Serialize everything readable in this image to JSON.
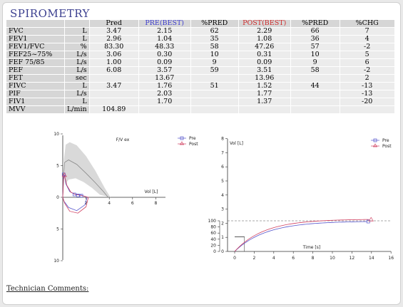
{
  "title": "SPIROMETRY",
  "table": {
    "headers": [
      "",
      "",
      "Pred",
      "PRE(BEST)",
      "%PRED",
      "POST(BEST)",
      "%PRED",
      "%CHG"
    ],
    "rows": [
      [
        "FVC",
        "L",
        "3.47",
        "2.15",
        "62",
        "2.29",
        "66",
        "7"
      ],
      [
        "FEV1",
        "L",
        "2.96",
        "1.04",
        "35",
        "1.08",
        "36",
        "4"
      ],
      [
        "FEV1/FVC",
        "%",
        "83.30",
        "48.33",
        "58",
        "47.26",
        "57",
        "-2"
      ],
      [
        "FEF25~75%",
        "L/s",
        "3.06",
        "0.30",
        "10",
        "0.31",
        "10",
        "5"
      ],
      [
        "FEF 75/85",
        "L/s",
        "1.00",
        "0.09",
        "9",
        "0.09",
        "9",
        "6"
      ],
      [
        "PEF",
        "L/s",
        "6.08",
        "3.57",
        "59",
        "3.51",
        "58",
        "-2"
      ],
      [
        "FET",
        "sec",
        "",
        "13.67",
        "",
        "13.96",
        "",
        "2"
      ],
      [
        "FIVC",
        "L",
        "3.47",
        "1.76",
        "51",
        "1.52",
        "44",
        "-13"
      ],
      [
        "PIF",
        "L/s",
        "",
        "2.03",
        "",
        "1.77",
        "",
        "-13"
      ],
      [
        "FIV1",
        "L",
        "",
        "1.70",
        "",
        "1.37",
        "",
        "-20"
      ],
      [
        "MVV",
        "L/min",
        "104.89",
        "",
        "",
        "",
        "",
        ""
      ]
    ]
  },
  "fv_chart": {
    "title": "F/V ex",
    "x_label": "Vol [L]",
    "x_ticks": [
      "2",
      "4",
      "6",
      "8"
    ],
    "y_ticks": [
      "10",
      "5",
      "0",
      "5",
      "10"
    ],
    "legend": [
      "Pre",
      "Post"
    ],
    "colors": {
      "pre": "#5555cc",
      "post": "#d04060",
      "band": "#d9d9d9",
      "pred": "#888888"
    }
  },
  "vt_chart": {
    "y_label": "Vol [L]",
    "x_label": "Time [s]",
    "y_ticks": [
      "8",
      "7",
      "6",
      "5",
      "4",
      "3",
      "2",
      "1",
      "0"
    ],
    "pct_ticks": [
      "100",
      "80",
      "60",
      "40",
      "20",
      "0"
    ],
    "x_ticks": [
      "0",
      "2",
      "4",
      "6",
      "8",
      "10",
      "12",
      "14",
      "16"
    ],
    "legend": [
      "Pre",
      "Post"
    ]
  },
  "technician_comments_label": "Technician Comments:"
}
